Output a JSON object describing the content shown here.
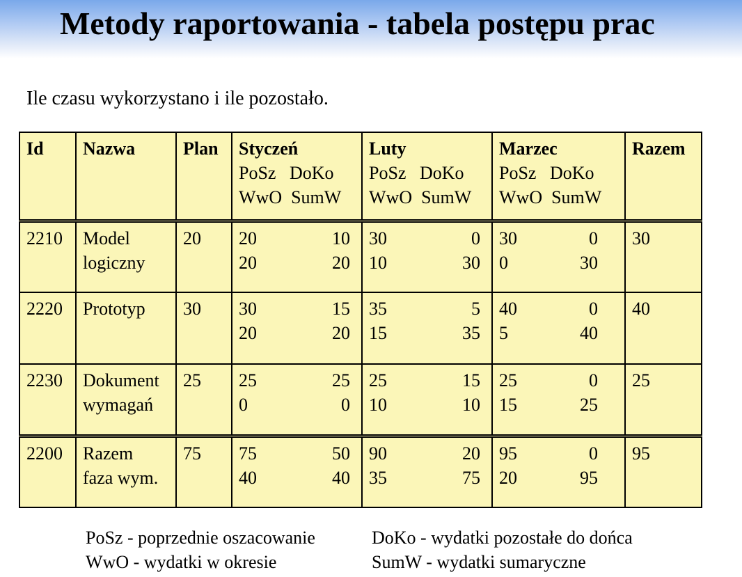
{
  "slide": {
    "title": "Metody raportowania - tabela postępu prac",
    "subtitle": "Ile czasu wykorzystano i ile pozostało."
  },
  "table": {
    "headers": {
      "id": "Id",
      "name": "Nazwa",
      "plan": "Plan",
      "months": [
        {
          "name": "Styczeń",
          "line1": "PoSz   DoKo",
          "line2": "WwO  SumW"
        },
        {
          "name": "Luty",
          "line1": "PoSz   DoKo",
          "line2": "WwO  SumW"
        },
        {
          "name": "Marzec",
          "line1": "PoSz   DoKo",
          "line2": "WwO  SumW"
        }
      ],
      "total": "Razem"
    },
    "rows": [
      {
        "id": "2210",
        "name1": "Model",
        "name2": "logiczny",
        "plan": "20",
        "months": [
          {
            "posz": "20",
            "doko": "10",
            "wwo": "20",
            "sumw": "20"
          },
          {
            "posz": "30",
            "doko": "0",
            "wwo": "10",
            "sumw": "30"
          },
          {
            "posz": "30",
            "doko": "0",
            "wwo": "0",
            "sumw": "30"
          }
        ],
        "total": "30"
      },
      {
        "id": "2220",
        "name1": "Prototyp",
        "name2": "",
        "plan": "30",
        "months": [
          {
            "posz": "30",
            "doko": "15",
            "wwo": "20",
            "sumw": "20"
          },
          {
            "posz": "35",
            "doko": "5",
            "wwo": "15",
            "sumw": "35"
          },
          {
            "posz": "40",
            "doko": "0",
            "wwo": "5",
            "sumw": "40"
          }
        ],
        "total": "40"
      },
      {
        "id": "2230",
        "name1": "Dokument",
        "name2": "wymagań",
        "plan": "25",
        "months": [
          {
            "posz": "25",
            "doko": "25",
            "wwo": "0",
            "sumw": "0"
          },
          {
            "posz": "25",
            "doko": "15",
            "wwo": "10",
            "sumw": "10"
          },
          {
            "posz": "25",
            "doko": "0",
            "wwo": "15",
            "sumw": "25"
          }
        ],
        "total": "25"
      },
      {
        "id": "2200",
        "name1": "Razem",
        "name2": "faza wym.",
        "plan": "75",
        "months": [
          {
            "posz": "75",
            "doko": "50",
            "wwo": "40",
            "sumw": "40"
          },
          {
            "posz": "90",
            "doko": "20",
            "wwo": "35",
            "sumw": "75"
          },
          {
            "posz": "95",
            "doko": "0",
            "wwo": "20",
            "sumw": "95"
          }
        ],
        "total": "95"
      }
    ]
  },
  "legend": {
    "posz": "PoSz - poprzednie oszacowanie",
    "wwo": "WwO - wydatki w okresie",
    "doko": "DoKo - wydatki pozostałe do dońca",
    "sumw": "SumW - wydatki sumaryczne"
  }
}
